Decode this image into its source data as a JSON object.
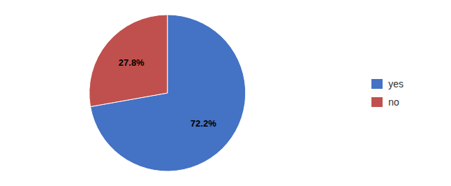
{
  "chart_data": {
    "type": "pie",
    "categories": [
      "yes",
      "no"
    ],
    "values": [
      72.2,
      27.8
    ],
    "colors": [
      "#4472C4",
      "#C0504D"
    ],
    "data_labels": true,
    "value_labels": [
      "72.2%",
      "27.8%"
    ],
    "legend": "right"
  }
}
